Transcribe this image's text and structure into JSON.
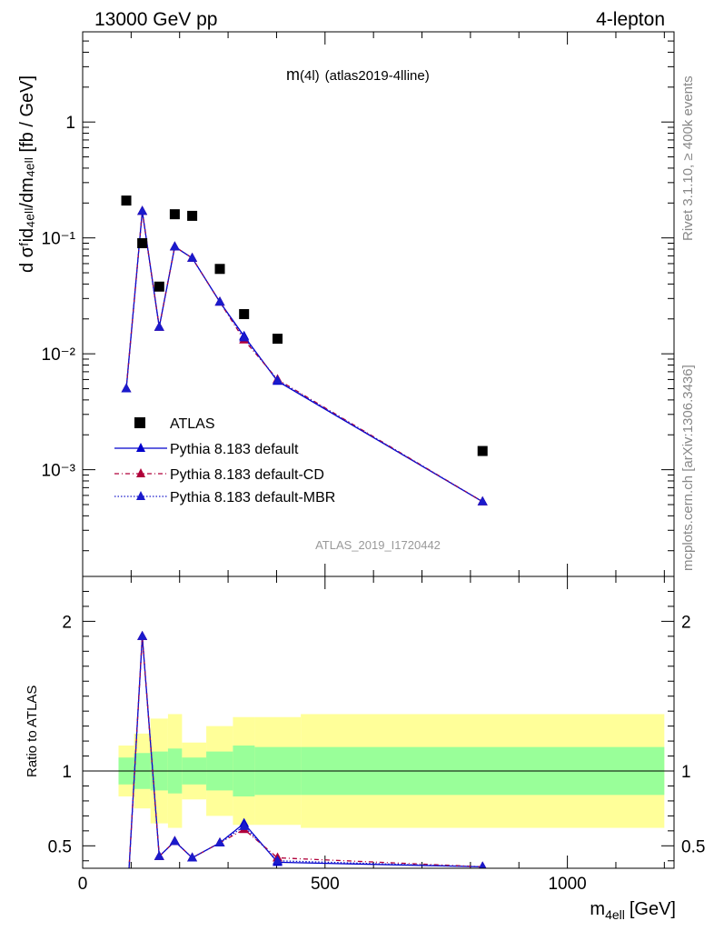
{
  "header": {
    "left": "13000 GeV pp",
    "right": "4-lepton"
  },
  "plot_title": {
    "main": "m",
    "sub": "(4l)",
    "tag": "(atlas2019-4lline)"
  },
  "side_labels": {
    "rivet": "Rivet 3.1.10, ≥ 400k events",
    "mcplots": "mcplots.cern.ch [arXiv:1306.3436]"
  },
  "analysis_label": "ATLAS_2019_I1720442",
  "axes": {
    "main_ylabel": "d σᶠid₄ₑₗₗ/dm₄ₑₗₗ [fb / GeV]",
    "ratio_ylabel": "Ratio to ATLAS",
    "xlabel": "m",
    "xlabel_sub": "4ell",
    "xlabel_unit": "[GeV]"
  },
  "legend": {
    "atlas": "ATLAS",
    "default": "Pythia 8.183 default",
    "cd": "Pythia 8.183 default-CD",
    "mbr": "Pythia 8.183 default-MBR"
  },
  "colors": {
    "atlas": "#000000",
    "default": "#0000cc",
    "cd": "#b0003a",
    "mbr": "#1a1acc",
    "band_inner": "#99ff99",
    "band_outer": "#ffff99"
  },
  "chart_data": [
    {
      "type": "scatter",
      "panel": "main",
      "yscale": "log",
      "xlim": [
        0,
        1220
      ],
      "ylim": [
        0.00012,
        6
      ],
      "x_ticks": [
        0,
        500,
        1000
      ],
      "y_ticks": [
        {
          "value": 1,
          "label": "1"
        },
        {
          "value": 0.1,
          "label": "10⁻¹"
        },
        {
          "value": 0.01,
          "label": "10⁻²"
        },
        {
          "value": 0.001,
          "label": "10⁻³"
        }
      ],
      "x": [
        90,
        123,
        158,
        190,
        226,
        283,
        333,
        402,
        825
      ],
      "series": [
        {
          "name": "ATLAS",
          "marker": "square",
          "values": [
            0.21,
            0.09,
            0.038,
            0.16,
            0.155,
            0.054,
            0.022,
            0.0135,
            0.00145
          ]
        },
        {
          "name": "Pythia 8.183 default",
          "marker": "triangle",
          "line": "solid",
          "values": [
            0.005,
            0.17,
            0.017,
            0.084,
            0.067,
            0.028,
            0.0142,
            0.0058,
            0.00053
          ]
        },
        {
          "name": "Pythia 8.183 default-CD",
          "marker": "triangle",
          "line": "dashdot",
          "values": [
            0.005,
            0.17,
            0.017,
            0.084,
            0.067,
            0.028,
            0.0132,
            0.006,
            0.00053
          ]
        },
        {
          "name": "Pythia 8.183 default-MBR",
          "marker": "triangle",
          "line": "dotted",
          "values": [
            0.005,
            0.17,
            0.017,
            0.084,
            0.067,
            0.028,
            0.0138,
            0.0059,
            0.00053
          ]
        }
      ]
    },
    {
      "type": "line",
      "panel": "ratio",
      "xlim": [
        0,
        1220
      ],
      "ylim": [
        0.35,
        2.3
      ],
      "y_ticks": [
        {
          "value": 0.5,
          "label": "0.5"
        },
        {
          "value": 1,
          "label": "1"
        },
        {
          "value": 2,
          "label": "2"
        }
      ],
      "bands": [
        {
          "x0": 74,
          "x1": 106,
          "inner": [
            0.91,
            1.09
          ],
          "outer": [
            0.83,
            1.17
          ]
        },
        {
          "x0": 106,
          "x1": 140,
          "inner": [
            0.88,
            1.12
          ],
          "outer": [
            0.75,
            1.25
          ]
        },
        {
          "x0": 140,
          "x1": 176,
          "inner": [
            0.87,
            1.13
          ],
          "outer": [
            0.65,
            1.35
          ]
        },
        {
          "x0": 176,
          "x1": 205,
          "inner": [
            0.85,
            1.15
          ],
          "outer": [
            0.62,
            1.38
          ]
        },
        {
          "x0": 205,
          "x1": 255,
          "inner": [
            0.91,
            1.09
          ],
          "outer": [
            0.81,
            1.19
          ]
        },
        {
          "x0": 255,
          "x1": 310,
          "inner": [
            0.87,
            1.13
          ],
          "outer": [
            0.7,
            1.3
          ]
        },
        {
          "x0": 310,
          "x1": 355,
          "inner": [
            0.83,
            1.17
          ],
          "outer": [
            0.64,
            1.36
          ]
        },
        {
          "x0": 355,
          "x1": 450,
          "inner": [
            0.84,
            1.16
          ],
          "outer": [
            0.64,
            1.36
          ]
        },
        {
          "x0": 450,
          "x1": 1200,
          "inner": [
            0.84,
            1.16
          ],
          "outer": [
            0.62,
            1.38
          ]
        }
      ],
      "x": [
        90,
        123,
        158,
        190,
        226,
        283,
        333,
        402,
        825
      ],
      "series": [
        {
          "name": "Pythia 8.183 default",
          "values": [
            0.024,
            1.9,
            0.43,
            0.53,
            0.42,
            0.52,
            0.65,
            0.39,
            0.36
          ]
        },
        {
          "name": "Pythia 8.183 default-CD",
          "values": [
            0.024,
            1.9,
            0.43,
            0.53,
            0.42,
            0.52,
            0.61,
            0.42,
            0.36
          ]
        },
        {
          "name": "Pythia 8.183 default-MBR",
          "values": [
            0.024,
            1.9,
            0.43,
            0.53,
            0.42,
            0.52,
            0.63,
            0.4,
            0.36
          ]
        }
      ]
    }
  ]
}
